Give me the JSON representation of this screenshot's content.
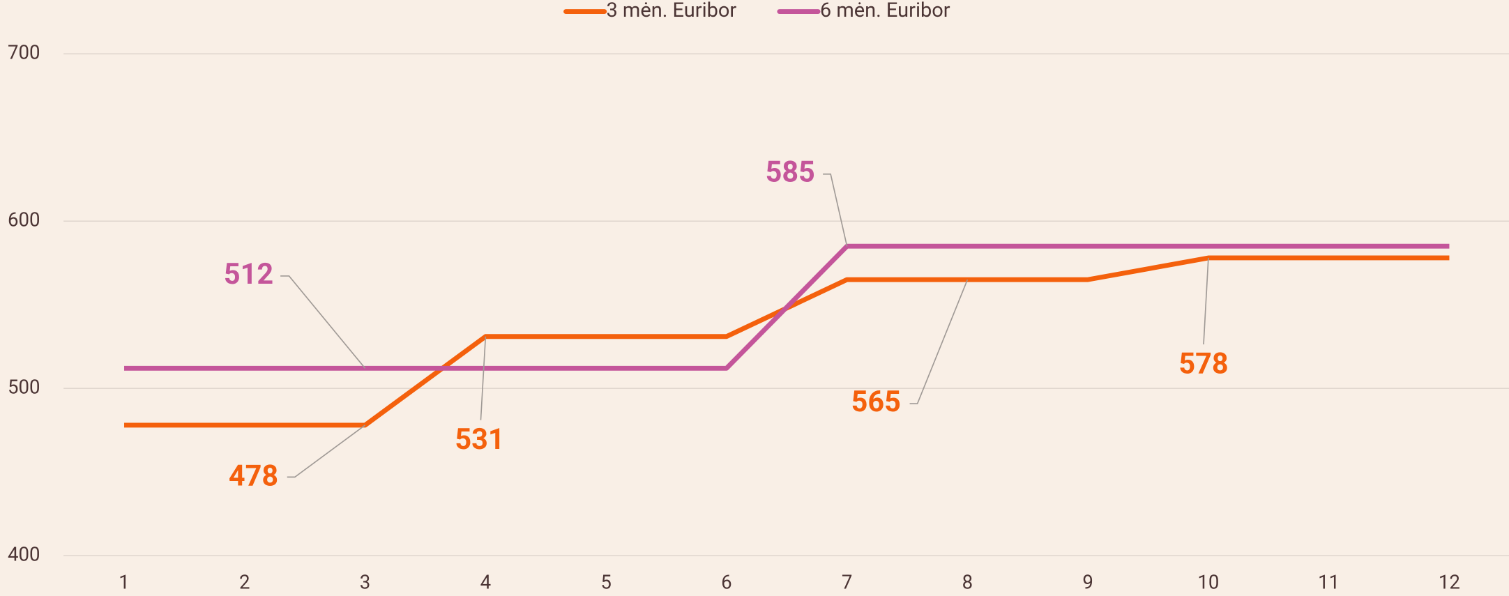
{
  "chart_data": {
    "type": "line",
    "categories": [
      "1",
      "2",
      "3",
      "4",
      "5",
      "6",
      "7",
      "8",
      "9",
      "10",
      "11",
      "12"
    ],
    "series": [
      {
        "name": "3 mėn. Euribor",
        "color": "#f4600c",
        "values": [
          478,
          478,
          478,
          531,
          531,
          531,
          565,
          565,
          565,
          578,
          578,
          578
        ],
        "value_labels": [
          null,
          null,
          "478",
          "531",
          null,
          null,
          null,
          "565",
          null,
          "578",
          null,
          null
        ]
      },
      {
        "name": "6 mėn. Euribor",
        "color": "#c4559a",
        "values": [
          512,
          512,
          512,
          512,
          512,
          512,
          585,
          585,
          585,
          585,
          585,
          585
        ],
        "value_labels": [
          null,
          null,
          "512",
          null,
          null,
          null,
          "585",
          null,
          null,
          null,
          null,
          null
        ]
      }
    ],
    "ylim": [
      400,
      700
    ],
    "yticks": [
      400,
      500,
      600,
      700
    ],
    "grid": true,
    "legend": "top"
  }
}
